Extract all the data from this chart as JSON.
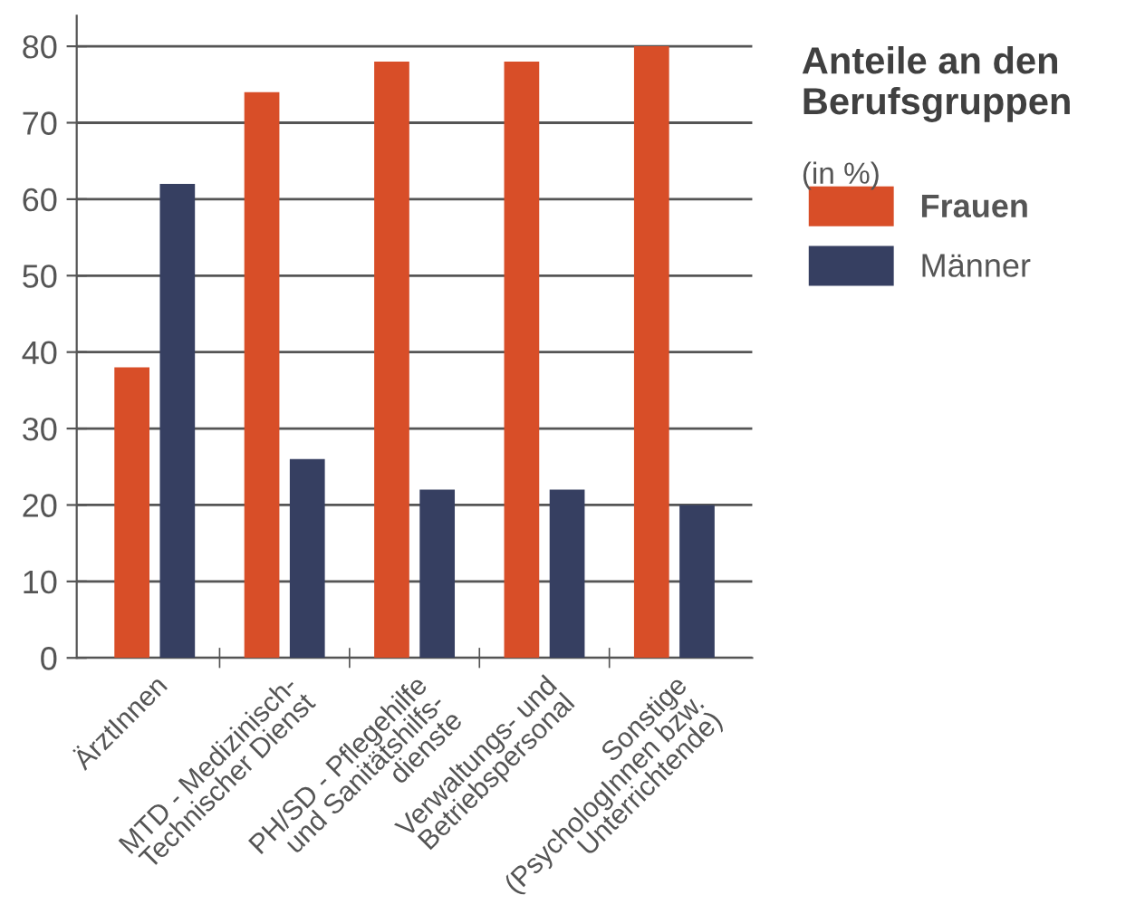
{
  "chart_data": {
    "type": "bar",
    "title": "Anteile an den Berufsgruppen",
    "subtitle": "(in %)",
    "categories": [
      "ÄrztInnen",
      "MTD - Medizinisch-\nTechnischer Dienst",
      "PH/SD - Pflegehilfe\nund Sanitätshilfs-\ndienste",
      "Verwaltungs- und\nBetriebspersonal",
      "Sonstige\n(PsychologInnen bzw.\nUnterrichtende)"
    ],
    "series": [
      {
        "name": "Frauen",
        "color": "#d84e28",
        "values": [
          38,
          74,
          78,
          78,
          80
        ]
      },
      {
        "name": "Männer",
        "color": "#363f61",
        "values": [
          62,
          26,
          22,
          22,
          20
        ]
      }
    ],
    "ylim": [
      0,
      84
    ],
    "yticks": [
      0,
      10,
      20,
      30,
      40,
      50,
      60,
      70,
      80
    ],
    "grid": "y",
    "legend": "right"
  }
}
